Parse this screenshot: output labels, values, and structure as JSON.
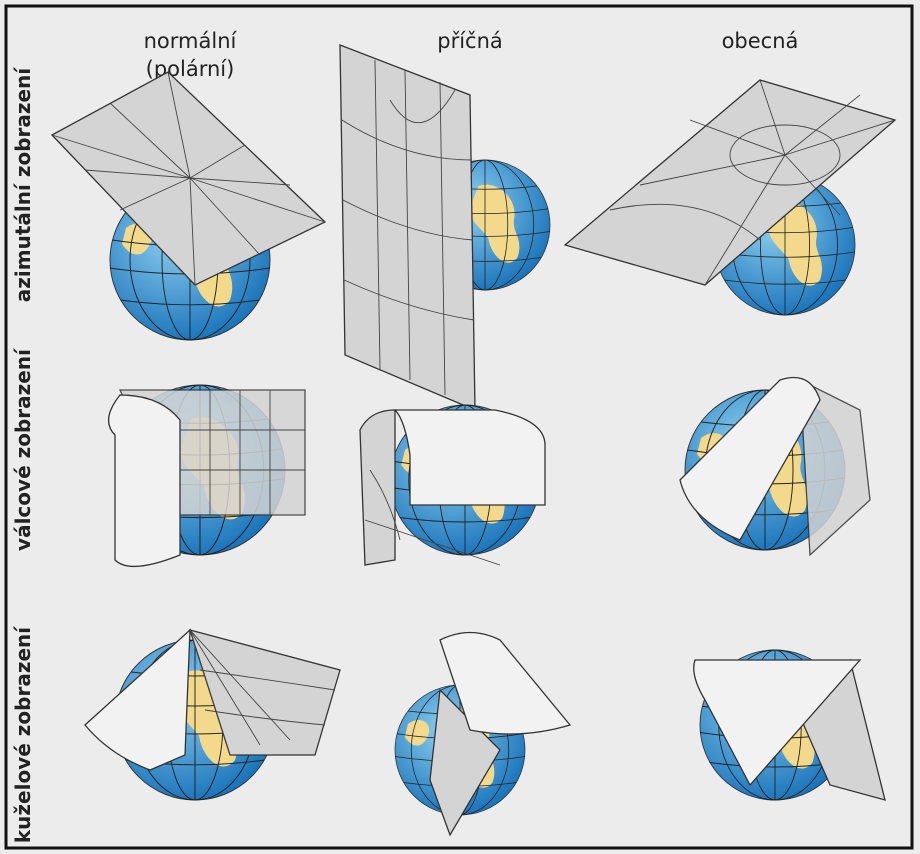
{
  "columns": [
    {
      "lines": [
        "normální",
        "(polární)"
      ]
    },
    {
      "lines": [
        "příčná"
      ]
    },
    {
      "lines": [
        "obecná"
      ]
    }
  ],
  "rows": [
    "azimutální zobrazení",
    "válcové zobrazení",
    "kuželové zobrazení"
  ]
}
